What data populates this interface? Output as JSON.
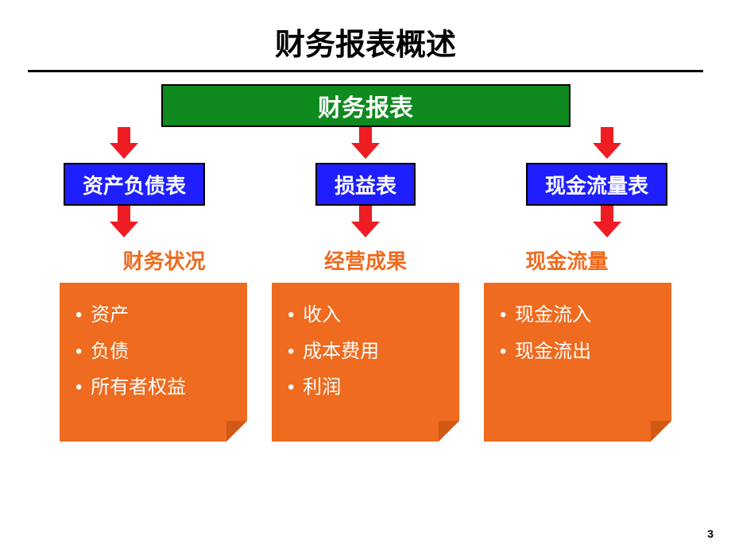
{
  "title": "财务报表概述",
  "root": {
    "label": "财务报表",
    "bg_color": "#0f8a1e",
    "text_color": "#ffffff",
    "border_color": "#000000"
  },
  "arrow": {
    "color": "#ee1c23"
  },
  "columns": [
    {
      "blue_label": "资产负债表",
      "subtitle": "财务状况",
      "items": [
        "资产",
        "负债",
        "所有者权益"
      ]
    },
    {
      "blue_label": "损益表",
      "subtitle": "经营成果",
      "items": [
        "收入",
        "成本费用",
        "利润"
      ]
    },
    {
      "blue_label": "现金流量表",
      "subtitle": "现金流量",
      "items": [
        "现金流入",
        "现金流出"
      ]
    }
  ],
  "styles": {
    "blue_box_bg": "#1e1eff",
    "blue_box_text": "#ffffff",
    "subtitle_color": "#ee6b1f",
    "card_bg": "#ee6b1f",
    "card_text": "#ffffff",
    "card_curl_dark": "#d05a15",
    "background": "#ffffff",
    "title_fontsize": 38,
    "blue_fontsize": 26,
    "subtitle_fontsize": 26,
    "item_fontsize": 24
  },
  "page_number": "3"
}
